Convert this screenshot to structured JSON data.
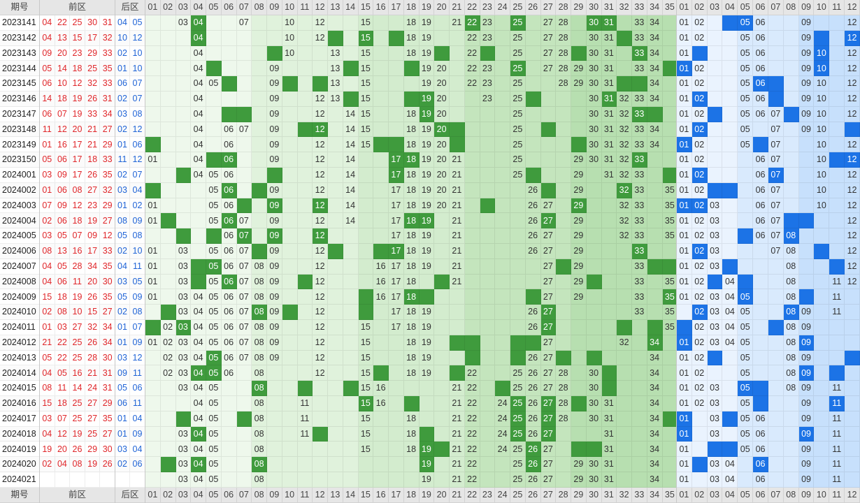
{
  "header": {
    "issue_label": "期号",
    "front_label": "前区",
    "back_label": "后区"
  },
  "front_numbers": [
    "01",
    "02",
    "03",
    "04",
    "05",
    "06",
    "07",
    "08",
    "09",
    "10",
    "11",
    "12",
    "13",
    "14",
    "15",
    "16",
    "17",
    "18",
    "19",
    "20",
    "21",
    "22",
    "23",
    "24",
    "25",
    "26",
    "27",
    "28",
    "29",
    "30",
    "31",
    "32",
    "33",
    "34",
    "35"
  ],
  "back_numbers": [
    "01",
    "02",
    "03",
    "04",
    "05",
    "06",
    "07",
    "08",
    "09",
    "10",
    "11",
    "12"
  ],
  "colors": {
    "front_hit": "#3f9b3d",
    "back_hit": "#1c73e6",
    "front_digits": "#e0262a",
    "back_digits": "#1f63d6"
  },
  "chart_data": {
    "type": "table",
    "rows": [
      {
        "issue": "2023141",
        "front": [
          "04",
          "22",
          "25",
          "30",
          "31"
        ],
        "back": [
          "04",
          "05"
        ],
        "fv": [
          "03",
          "04",
          "07",
          "10",
          "12",
          "15",
          "18",
          "19",
          "21",
          "22",
          "23",
          "25",
          "27",
          "28",
          "30",
          "31",
          "33",
          "34"
        ],
        "bv": [
          "01",
          "02",
          "05",
          "06",
          "09",
          "12"
        ]
      },
      {
        "issue": "2023142",
        "front": [
          "04",
          "13",
          "15",
          "17",
          "32"
        ],
        "back": [
          "10",
          "12"
        ],
        "fv": [
          "04",
          "10",
          "12",
          "15",
          "18",
          "19",
          "22",
          "23",
          "25",
          "27",
          "28",
          "30",
          "31",
          "33",
          "34"
        ],
        "bv": [
          "01",
          "02",
          "05",
          "06",
          "09",
          "12"
        ]
      },
      {
        "issue": "2023143",
        "front": [
          "09",
          "20",
          "23",
          "29",
          "33"
        ],
        "back": [
          "02",
          "10"
        ],
        "fv": [
          "04",
          "10",
          "13",
          "15",
          "18",
          "19",
          "22",
          "25",
          "27",
          "28",
          "30",
          "31",
          "33",
          "34"
        ],
        "bv": [
          "01",
          "05",
          "06",
          "09",
          "10",
          "12"
        ]
      },
      {
        "issue": "2023144",
        "front": [
          "05",
          "14",
          "18",
          "25",
          "35"
        ],
        "back": [
          "01",
          "10"
        ],
        "fv": [
          "04",
          "09",
          "13",
          "15",
          "19",
          "20",
          "22",
          "23",
          "25",
          "27",
          "28",
          "29",
          "30",
          "31",
          "33",
          "34"
        ],
        "bv": [
          "01",
          "02",
          "05",
          "06",
          "09",
          "10",
          "12"
        ]
      },
      {
        "issue": "2023145",
        "front": [
          "06",
          "10",
          "12",
          "32",
          "33"
        ],
        "back": [
          "06",
          "07"
        ],
        "fv": [
          "04",
          "05",
          "09",
          "13",
          "15",
          "19",
          "20",
          "22",
          "23",
          "25",
          "28",
          "29",
          "30",
          "31",
          "34"
        ],
        "bv": [
          "01",
          "02",
          "05",
          "06",
          "09",
          "10",
          "12"
        ]
      },
      {
        "issue": "2023146",
        "front": [
          "14",
          "18",
          "19",
          "26",
          "31"
        ],
        "back": [
          "02",
          "07"
        ],
        "fv": [
          "04",
          "09",
          "12",
          "13",
          "15",
          "19",
          "20",
          "23",
          "25",
          "30",
          "31",
          "32",
          "33",
          "34"
        ],
        "bv": [
          "01",
          "02",
          "05",
          "06",
          "09",
          "10",
          "12"
        ]
      },
      {
        "issue": "2023147",
        "front": [
          "06",
          "07",
          "19",
          "33",
          "34"
        ],
        "back": [
          "03",
          "08"
        ],
        "fv": [
          "04",
          "09",
          "12",
          "14",
          "15",
          "18",
          "19",
          "20",
          "25",
          "30",
          "31",
          "32",
          "33"
        ],
        "bv": [
          "01",
          "02",
          "05",
          "06",
          "07",
          "09",
          "10",
          "12"
        ]
      },
      {
        "issue": "2023148",
        "front": [
          "11",
          "12",
          "20",
          "21",
          "27"
        ],
        "back": [
          "02",
          "12"
        ],
        "fv": [
          "04",
          "06",
          "07",
          "09",
          "12",
          "14",
          "15",
          "18",
          "19",
          "20",
          "25",
          "30",
          "31",
          "32",
          "33",
          "34"
        ],
        "bv": [
          "01",
          "02",
          "05",
          "07",
          "09",
          "10"
        ]
      },
      {
        "issue": "2023149",
        "front": [
          "01",
          "16",
          "17",
          "21",
          "29"
        ],
        "back": [
          "01",
          "06"
        ],
        "fv": [
          "04",
          "06",
          "09",
          "12",
          "14",
          "15",
          "18",
          "19",
          "20",
          "25",
          "30",
          "31",
          "32",
          "33",
          "34"
        ],
        "bv": [
          "01",
          "02",
          "05",
          "07",
          "10",
          "12"
        ]
      },
      {
        "issue": "2023150",
        "front": [
          "05",
          "06",
          "17",
          "18",
          "33"
        ],
        "back": [
          "11",
          "12"
        ],
        "fv": [
          "01",
          "04",
          "06",
          "09",
          "12",
          "14",
          "17",
          "18",
          "19",
          "20",
          "21",
          "25",
          "29",
          "30",
          "31",
          "32",
          "33"
        ],
        "bv": [
          "01",
          "02",
          "06",
          "07",
          "10",
          "12"
        ]
      },
      {
        "issue": "2024001",
        "front": [
          "03",
          "09",
          "17",
          "26",
          "35"
        ],
        "back": [
          "02",
          "07"
        ],
        "fv": [
          "04",
          "05",
          "06",
          "12",
          "14",
          "17",
          "18",
          "19",
          "20",
          "21",
          "25",
          "29",
          "31",
          "32",
          "33"
        ],
        "bv": [
          "01",
          "02",
          "06",
          "07",
          "10",
          "12"
        ]
      },
      {
        "issue": "2024002",
        "front": [
          "01",
          "06",
          "08",
          "27",
          "32"
        ],
        "back": [
          "03",
          "04"
        ],
        "fv": [
          "05",
          "06",
          "09",
          "12",
          "14",
          "17",
          "18",
          "19",
          "20",
          "21",
          "26",
          "29",
          "32",
          "33",
          "35"
        ],
        "bv": [
          "01",
          "02",
          "06",
          "07",
          "10",
          "12"
        ]
      },
      {
        "issue": "2024003",
        "front": [
          "07",
          "09",
          "12",
          "23",
          "29"
        ],
        "back": [
          "01",
          "02"
        ],
        "fv": [
          "01",
          "05",
          "06",
          "09",
          "12",
          "14",
          "17",
          "18",
          "19",
          "20",
          "21",
          "26",
          "27",
          "29",
          "32",
          "33",
          "35"
        ],
        "bv": [
          "01",
          "02",
          "03",
          "06",
          "07",
          "10",
          "12"
        ]
      },
      {
        "issue": "2024004",
        "front": [
          "02",
          "06",
          "18",
          "19",
          "27"
        ],
        "back": [
          "08",
          "09"
        ],
        "fv": [
          "01",
          "05",
          "06",
          "07",
          "09",
          "12",
          "14",
          "17",
          "18",
          "19",
          "21",
          "26",
          "27",
          "29",
          "32",
          "33",
          "35"
        ],
        "bv": [
          "01",
          "02",
          "03",
          "06",
          "07",
          "12"
        ]
      },
      {
        "issue": "2024005",
        "front": [
          "03",
          "05",
          "07",
          "09",
          "12"
        ],
        "back": [
          "05",
          "08"
        ],
        "fv": [
          "06",
          "07",
          "09",
          "12",
          "17",
          "18",
          "19",
          "21",
          "26",
          "27",
          "29",
          "32",
          "33",
          "35"
        ],
        "bv": [
          "01",
          "02",
          "03",
          "06",
          "07",
          "08",
          "12"
        ]
      },
      {
        "issue": "2024006",
        "front": [
          "08",
          "13",
          "16",
          "17",
          "33"
        ],
        "back": [
          "02",
          "10"
        ],
        "fv": [
          "01",
          "03",
          "05",
          "06",
          "07",
          "09",
          "12",
          "17",
          "18",
          "19",
          "21",
          "26",
          "27",
          "29",
          "33"
        ],
        "bv": [
          "01",
          "02",
          "03",
          "07",
          "08",
          "12"
        ]
      },
      {
        "issue": "2024007",
        "front": [
          "04",
          "05",
          "28",
          "34",
          "35"
        ],
        "back": [
          "04",
          "11"
        ],
        "fv": [
          "01",
          "03",
          "05",
          "06",
          "07",
          "08",
          "09",
          "12",
          "16",
          "17",
          "18",
          "19",
          "21",
          "27",
          "29",
          "33"
        ],
        "bv": [
          "01",
          "02",
          "03",
          "08",
          "12"
        ]
      },
      {
        "issue": "2024008",
        "front": [
          "04",
          "06",
          "11",
          "20",
          "30"
        ],
        "back": [
          "03",
          "05"
        ],
        "fv": [
          "01",
          "03",
          "05",
          "06",
          "07",
          "08",
          "09",
          "12",
          "16",
          "17",
          "18",
          "21",
          "27",
          "29",
          "33",
          "35"
        ],
        "bv": [
          "01",
          "02",
          "04",
          "08",
          "11",
          "12"
        ]
      },
      {
        "issue": "2024009",
        "front": [
          "15",
          "18",
          "19",
          "26",
          "35"
        ],
        "back": [
          "05",
          "09"
        ],
        "fv": [
          "01",
          "03",
          "04",
          "05",
          "06",
          "07",
          "08",
          "09",
          "12",
          "16",
          "17",
          "18",
          "27",
          "29",
          "33",
          "35"
        ],
        "bv": [
          "01",
          "02",
          "03",
          "04",
          "05",
          "08",
          "11"
        ]
      },
      {
        "issue": "2024010",
        "front": [
          "02",
          "08",
          "10",
          "15",
          "27"
        ],
        "back": [
          "02",
          "08"
        ],
        "fv": [
          "03",
          "04",
          "05",
          "06",
          "07",
          "08",
          "09",
          "12",
          "17",
          "18",
          "19",
          "26",
          "27",
          "33",
          "35"
        ],
        "bv": [
          "02",
          "03",
          "04",
          "05",
          "08",
          "09",
          "11"
        ]
      },
      {
        "issue": "2024011",
        "front": [
          "01",
          "03",
          "27",
          "32",
          "34"
        ],
        "back": [
          "01",
          "07"
        ],
        "fv": [
          "02",
          "03",
          "04",
          "05",
          "06",
          "07",
          "08",
          "09",
          "12",
          "15",
          "17",
          "18",
          "19",
          "26",
          "27",
          "35"
        ],
        "bv": [
          "02",
          "03",
          "04",
          "05",
          "08",
          "09"
        ]
      },
      {
        "issue": "2024012",
        "front": [
          "21",
          "22",
          "25",
          "26",
          "34"
        ],
        "back": [
          "01",
          "09"
        ],
        "fv": [
          "01",
          "02",
          "03",
          "04",
          "05",
          "06",
          "07",
          "08",
          "09",
          "12",
          "15",
          "18",
          "19",
          "27",
          "32",
          "34"
        ],
        "bv": [
          "01",
          "02",
          "03",
          "04",
          "05",
          "08",
          "09"
        ]
      },
      {
        "issue": "2024013",
        "front": [
          "05",
          "22",
          "25",
          "28",
          "30"
        ],
        "back": [
          "03",
          "12"
        ],
        "fv": [
          "02",
          "03",
          "04",
          "05",
          "06",
          "07",
          "08",
          "09",
          "12",
          "15",
          "18",
          "19",
          "26",
          "27",
          "34"
        ],
        "bv": [
          "01",
          "02",
          "05",
          "08",
          "09"
        ]
      },
      {
        "issue": "2024014",
        "front": [
          "04",
          "05",
          "16",
          "21",
          "31"
        ],
        "back": [
          "09",
          "11"
        ],
        "fv": [
          "02",
          "03",
          "04",
          "05",
          "06",
          "08",
          "12",
          "15",
          "18",
          "19",
          "22",
          "25",
          "26",
          "27",
          "28",
          "30",
          "34"
        ],
        "bv": [
          "01",
          "02",
          "05",
          "08",
          "09"
        ]
      },
      {
        "issue": "2024015",
        "front": [
          "08",
          "11",
          "14",
          "24",
          "31"
        ],
        "back": [
          "05",
          "06"
        ],
        "fv": [
          "03",
          "04",
          "05",
          "08",
          "15",
          "16",
          "21",
          "22",
          "25",
          "26",
          "27",
          "28",
          "30",
          "34"
        ],
        "bv": [
          "01",
          "02",
          "03",
          "05",
          "08",
          "09",
          "11"
        ]
      },
      {
        "issue": "2024016",
        "front": [
          "15",
          "18",
          "25",
          "27",
          "29"
        ],
        "back": [
          "06",
          "11"
        ],
        "fv": [
          "04",
          "05",
          "08",
          "11",
          "15",
          "16",
          "21",
          "22",
          "24",
          "25",
          "26",
          "27",
          "28",
          "30",
          "31",
          "34"
        ],
        "bv": [
          "01",
          "02",
          "03",
          "05",
          "09",
          "11"
        ]
      },
      {
        "issue": "2024017",
        "front": [
          "03",
          "07",
          "25",
          "27",
          "35"
        ],
        "back": [
          "01",
          "04"
        ],
        "fv": [
          "04",
          "05",
          "08",
          "11",
          "15",
          "18",
          "21",
          "22",
          "24",
          "25",
          "26",
          "27",
          "28",
          "30",
          "31",
          "34"
        ],
        "bv": [
          "01",
          "03",
          "05",
          "06",
          "09",
          "11"
        ]
      },
      {
        "issue": "2024018",
        "front": [
          "04",
          "12",
          "19",
          "25",
          "27"
        ],
        "back": [
          "01",
          "09"
        ],
        "fv": [
          "03",
          "04",
          "05",
          "08",
          "11",
          "15",
          "18",
          "21",
          "22",
          "24",
          "25",
          "26",
          "27",
          "31",
          "34"
        ],
        "bv": [
          "01",
          "03",
          "05",
          "06",
          "09",
          "11"
        ]
      },
      {
        "issue": "2024019",
        "front": [
          "19",
          "20",
          "26",
          "29",
          "30"
        ],
        "back": [
          "03",
          "04"
        ],
        "fv": [
          "03",
          "04",
          "05",
          "08",
          "15",
          "18",
          "19",
          "21",
          "22",
          "24",
          "25",
          "26",
          "27",
          "31",
          "34"
        ],
        "bv": [
          "01",
          "05",
          "06",
          "09",
          "11"
        ]
      },
      {
        "issue": "2024020",
        "front": [
          "02",
          "04",
          "08",
          "19",
          "26"
        ],
        "back": [
          "02",
          "06"
        ],
        "fv": [
          "03",
          "04",
          "05",
          "08",
          "19",
          "21",
          "22",
          "25",
          "26",
          "27",
          "29",
          "30",
          "31",
          "34"
        ],
        "bv": [
          "01",
          "03",
          "04",
          "06",
          "09",
          "11"
        ]
      },
      {
        "issue": "2024021",
        "front": [],
        "back": [],
        "fv": [
          "03",
          "04",
          "05",
          "08",
          "19",
          "21",
          "22",
          "25",
          "26",
          "27",
          "29",
          "30",
          "31",
          "34"
        ],
        "bv": [
          "01",
          "03",
          "04",
          "06",
          "09",
          "11"
        ]
      }
    ]
  }
}
